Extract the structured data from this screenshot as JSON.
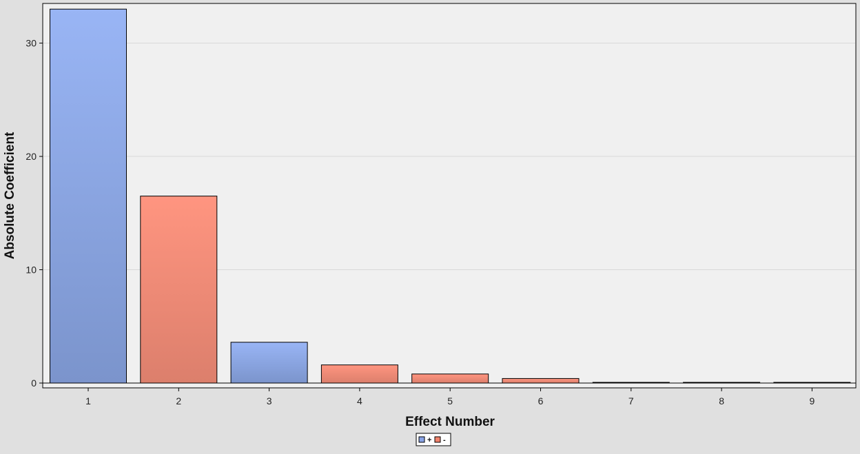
{
  "chart_data": {
    "type": "bar",
    "title": "",
    "xlabel": "Effect Number",
    "ylabel": "Absolute Coefficient",
    "categories": [
      "1",
      "2",
      "3",
      "4",
      "5",
      "6",
      "7",
      "8",
      "9"
    ],
    "values": [
      33.0,
      16.5,
      3.6,
      1.6,
      0.8,
      0.4,
      0.05,
      0.05,
      0.05
    ],
    "signs": [
      "+",
      "-",
      "+",
      "-",
      "-",
      "-",
      "+",
      "+",
      "+"
    ],
    "ylim": [
      0,
      33.5
    ],
    "yticks": [
      0,
      10,
      20,
      30
    ],
    "grid": true,
    "legend": {
      "placement": "bottom-center",
      "entries": [
        {
          "label": "+",
          "color": "#8aa4e6"
        },
        {
          "label": "-",
          "color": "#f0826c"
        }
      ]
    },
    "colors": {
      "positive_top": "#99b5f5",
      "positive_bottom": "#7b94cc",
      "negative_top": "#ff9580",
      "negative_bottom": "#dc7f6c",
      "plot_background": "#f0f0f0",
      "page_background": "#e0e0e0"
    }
  }
}
